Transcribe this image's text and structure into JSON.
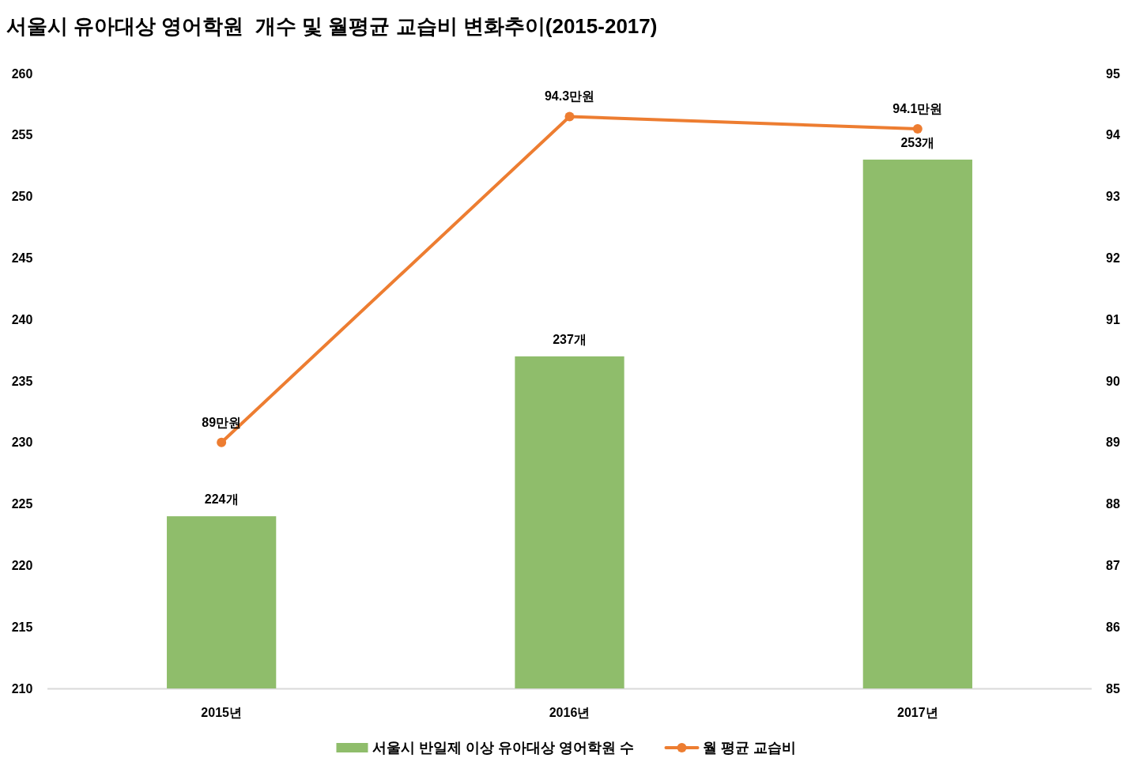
{
  "chart_data": {
    "type": "bar",
    "title": "서울시 유아대상 영어학원  개수 및 월평균 교습비 변화추이(2015-2017)",
    "categories": [
      "2015년",
      "2016년",
      "2017년"
    ],
    "series": [
      {
        "name": "서울시 반일제 이상 유아대상 영어학원 수",
        "color": "#8fbd6b",
        "values": [
          224,
          237,
          253
        ],
        "value_labels": [
          "224개",
          "237개",
          "253개"
        ]
      },
      {
        "name": "월 평균 교습비",
        "type": "line",
        "axis": "y2",
        "color": "#ed7d31",
        "marker": "circle",
        "values": [
          89,
          94.3,
          94.1
        ],
        "value_labels": [
          "89만원",
          "94.3만원",
          "94.1만원"
        ]
      }
    ],
    "ylim": [
      210,
      260
    ],
    "yticks": [
      210,
      215,
      220,
      225,
      230,
      235,
      240,
      245,
      250,
      255,
      260
    ],
    "y2lim": [
      85,
      95
    ],
    "y2ticks": [
      85,
      86,
      87,
      88,
      89,
      90,
      91,
      92,
      93,
      94,
      95
    ],
    "legend": "bottom"
  }
}
